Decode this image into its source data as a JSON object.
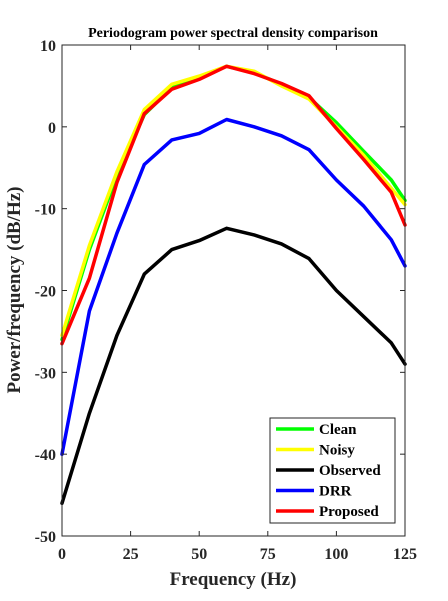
{
  "chart_data": {
    "type": "line",
    "title": "Periodogram power spectral density comparison",
    "xlabel": "Frequency (Hz)",
    "ylabel": "Power/frequency (dB/Hz)",
    "xlim": [
      0,
      125
    ],
    "ylim": [
      -50,
      10
    ],
    "xticks": [
      0,
      25,
      50,
      75,
      100,
      125
    ],
    "yticks": [
      -50,
      -40,
      -30,
      -20,
      -10,
      0,
      10
    ],
    "grid": false,
    "legend_position": "bottom-right",
    "x": [
      0,
      10,
      20,
      30,
      40,
      50,
      60,
      70,
      80,
      90,
      100,
      110,
      120,
      125
    ],
    "series": [
      {
        "name": "Clean",
        "color": "#00ff00",
        "values": [
          -26,
          -15,
          -6,
          1.5,
          4.8,
          6.0,
          7.4,
          6.6,
          5.2,
          3.6,
          0.5,
          -3,
          -6.5,
          -9
        ]
      },
      {
        "name": "Noisy",
        "color": "#ffff00",
        "values": [
          -25.5,
          -14.5,
          -5.5,
          2.1,
          5.2,
          6.2,
          7.4,
          6.8,
          5.0,
          3.4,
          0.0,
          -3.5,
          -7.5,
          -9.5
        ]
      },
      {
        "name": "Observed",
        "color": "#000000",
        "values": [
          -46,
          -35,
          -25.5,
          -18,
          -15,
          -13.9,
          -12.4,
          -13.2,
          -14.3,
          -16.1,
          -20,
          -23.2,
          -26.4,
          -29
        ]
      },
      {
        "name": "DRR",
        "color": "#0000ff",
        "values": [
          -40,
          -22.5,
          -13,
          -4.6,
          -1.6,
          -0.8,
          0.9,
          0.0,
          -1.1,
          -2.8,
          -6.5,
          -9.7,
          -13.8,
          -17
        ]
      },
      {
        "name": "Proposed",
        "color": "#ff0000",
        "values": [
          -26.5,
          -18.5,
          -6.8,
          1.6,
          4.6,
          5.8,
          7.4,
          6.5,
          5.3,
          3.8,
          -0.2,
          -4.0,
          -8.0,
          -12
        ]
      }
    ]
  }
}
